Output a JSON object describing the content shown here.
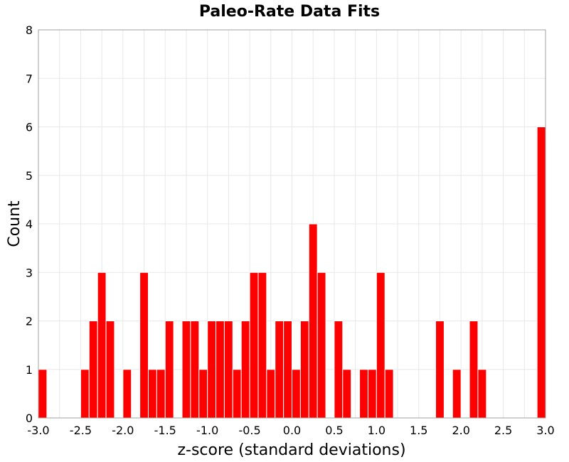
{
  "chart_data": {
    "type": "bar",
    "title": "Paleo-Rate Data Fits",
    "xlabel": "z-score (standard deviations)",
    "ylabel": "Count",
    "xlim": [
      -3.0,
      3.0
    ],
    "ylim": [
      0,
      8
    ],
    "x_ticks": [
      "-3.0",
      "-2.5",
      "-2.0",
      "-1.5",
      "-1.0",
      "-0.5",
      "0.0",
      "0.5",
      "1.0",
      "1.5",
      "2.0",
      "2.5",
      "3.0"
    ],
    "y_ticks": [
      "0",
      "1",
      "2",
      "3",
      "4",
      "5",
      "6",
      "7",
      "8"
    ],
    "grid": true,
    "legend": "none",
    "bar_color": "#ff0000",
    "bin_width": 0.1,
    "bins": [
      {
        "x_start": -3.0,
        "count": 1
      },
      {
        "x_start": -2.5,
        "count": 1
      },
      {
        "x_start": -2.4,
        "count": 2
      },
      {
        "x_start": -2.3,
        "count": 3
      },
      {
        "x_start": -2.2,
        "count": 2
      },
      {
        "x_start": -2.0,
        "count": 1
      },
      {
        "x_start": -1.8,
        "count": 3
      },
      {
        "x_start": -1.7,
        "count": 1
      },
      {
        "x_start": -1.6,
        "count": 1
      },
      {
        "x_start": -1.5,
        "count": 2
      },
      {
        "x_start": -1.3,
        "count": 2
      },
      {
        "x_start": -1.2,
        "count": 2
      },
      {
        "x_start": -1.1,
        "count": 1
      },
      {
        "x_start": -1.0,
        "count": 2
      },
      {
        "x_start": -0.9,
        "count": 2
      },
      {
        "x_start": -0.8,
        "count": 2
      },
      {
        "x_start": -0.7,
        "count": 1
      },
      {
        "x_start": -0.6,
        "count": 2
      },
      {
        "x_start": -0.5,
        "count": 3
      },
      {
        "x_start": -0.4,
        "count": 3
      },
      {
        "x_start": -0.3,
        "count": 1
      },
      {
        "x_start": -0.2,
        "count": 2
      },
      {
        "x_start": -0.1,
        "count": 2
      },
      {
        "x_start": 0.0,
        "count": 1
      },
      {
        "x_start": 0.1,
        "count": 2
      },
      {
        "x_start": 0.2,
        "count": 4
      },
      {
        "x_start": 0.3,
        "count": 3
      },
      {
        "x_start": 0.5,
        "count": 2
      },
      {
        "x_start": 0.6,
        "count": 1
      },
      {
        "x_start": 0.8,
        "count": 1
      },
      {
        "x_start": 0.9,
        "count": 1
      },
      {
        "x_start": 1.0,
        "count": 3
      },
      {
        "x_start": 1.1,
        "count": 1
      },
      {
        "x_start": 1.7,
        "count": 2
      },
      {
        "x_start": 1.9,
        "count": 1
      },
      {
        "x_start": 2.1,
        "count": 2
      },
      {
        "x_start": 2.2,
        "count": 1
      },
      {
        "x_start": 2.9,
        "count": 6
      }
    ]
  }
}
